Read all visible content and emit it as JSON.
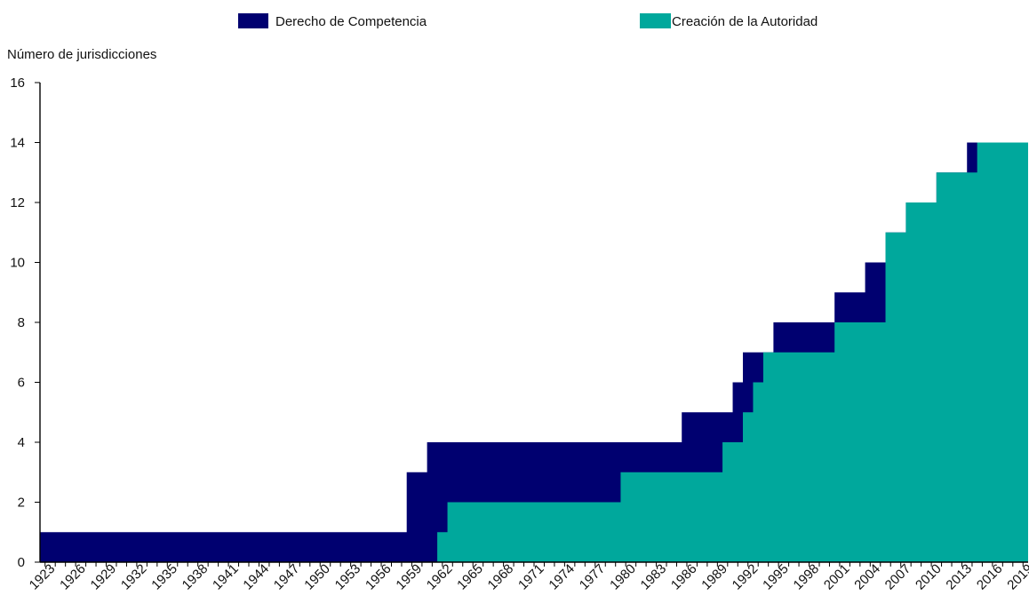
{
  "chart_data": {
    "type": "area",
    "title": "",
    "ylabel": "Número de jurisdicciones",
    "xlabel": "",
    "ylim": [
      0,
      16
    ],
    "y_ticks": [
      0,
      2,
      4,
      6,
      8,
      10,
      12,
      14,
      16
    ],
    "x_tick_labels": [
      "1923",
      "1926",
      "1929",
      "1932",
      "1935",
      "1938",
      "1941",
      "1944",
      "1947",
      "1950",
      "1953",
      "1956",
      "1959",
      "1962",
      "1965",
      "1968",
      "1971",
      "1974",
      "1977",
      "1980",
      "1983",
      "1986",
      "1989",
      "1992",
      "1995",
      "1998",
      "2001",
      "2004",
      "2007",
      "2010",
      "2013",
      "2016",
      "2019"
    ],
    "x": [
      1923,
      1924,
      1925,
      1926,
      1927,
      1928,
      1929,
      1930,
      1931,
      1932,
      1933,
      1934,
      1935,
      1936,
      1937,
      1938,
      1939,
      1940,
      1941,
      1942,
      1943,
      1944,
      1945,
      1946,
      1947,
      1948,
      1949,
      1950,
      1951,
      1952,
      1953,
      1954,
      1955,
      1956,
      1957,
      1958,
      1959,
      1960,
      1961,
      1962,
      1963,
      1964,
      1965,
      1966,
      1967,
      1968,
      1969,
      1970,
      1971,
      1972,
      1973,
      1974,
      1975,
      1976,
      1977,
      1978,
      1979,
      1980,
      1981,
      1982,
      1983,
      1984,
      1985,
      1986,
      1987,
      1988,
      1989,
      1990,
      1991,
      1992,
      1993,
      1994,
      1995,
      1996,
      1997,
      1998,
      1999,
      2000,
      2001,
      2002,
      2003,
      2004,
      2005,
      2006,
      2007,
      2008,
      2009,
      2010,
      2011,
      2012,
      2013,
      2014,
      2015,
      2016,
      2017,
      2018,
      2019
    ],
    "series": [
      {
        "name": "Derecho de Competencia",
        "color": "#000070",
        "values": [
          1,
          1,
          1,
          1,
          1,
          1,
          1,
          1,
          1,
          1,
          1,
          1,
          1,
          1,
          1,
          1,
          1,
          1,
          1,
          1,
          1,
          1,
          1,
          1,
          1,
          1,
          1,
          1,
          1,
          1,
          1,
          1,
          1,
          1,
          1,
          1,
          3,
          3,
          4,
          4,
          4,
          4,
          4,
          4,
          4,
          4,
          4,
          4,
          4,
          4,
          4,
          4,
          4,
          4,
          4,
          4,
          4,
          4,
          4,
          4,
          4,
          4,
          4,
          5,
          5,
          5,
          5,
          5,
          6,
          7,
          7,
          7,
          8,
          8,
          8,
          8,
          8,
          8,
          9,
          9,
          9,
          10,
          10,
          11,
          11,
          12,
          12,
          12,
          13,
          13,
          13,
          14,
          14,
          14,
          14,
          14,
          14
        ]
      },
      {
        "name": "Creación de la Autoridad",
        "color": "#00A89C",
        "values": [
          0,
          0,
          0,
          0,
          0,
          0,
          0,
          0,
          0,
          0,
          0,
          0,
          0,
          0,
          0,
          0,
          0,
          0,
          0,
          0,
          0,
          0,
          0,
          0,
          0,
          0,
          0,
          0,
          0,
          0,
          0,
          0,
          0,
          0,
          0,
          0,
          0,
          0,
          0,
          1,
          2,
          2,
          2,
          2,
          2,
          2,
          2,
          2,
          2,
          2,
          2,
          2,
          2,
          2,
          2,
          2,
          2,
          3,
          3,
          3,
          3,
          3,
          3,
          3,
          3,
          3,
          3,
          4,
          4,
          5,
          6,
          7,
          7,
          7,
          7,
          7,
          7,
          7,
          8,
          8,
          8,
          8,
          8,
          11,
          11,
          12,
          12,
          12,
          13,
          13,
          13,
          13,
          14,
          14,
          14,
          14,
          14
        ]
      }
    ],
    "legend": {
      "position": "top",
      "items": [
        "Derecho de Competencia",
        "Creación de la Autoridad"
      ]
    },
    "grid": false
  }
}
